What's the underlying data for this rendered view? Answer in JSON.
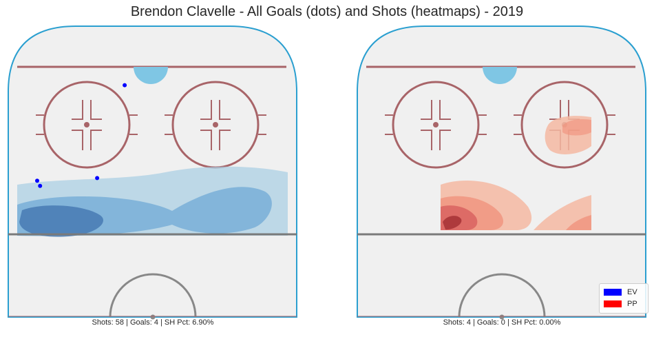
{
  "title": "Brendon Clavelle - All Goals (dots) and Shots (heatmaps) - 2019",
  "colors": {
    "ev": "#0000ff",
    "pp": "#ff0000",
    "boards": "#2a9fd0",
    "rink_red": "#a86468",
    "crease": "#7fc6e4",
    "ice": "#f0f0f0"
  },
  "legend": [
    {
      "label": "EV",
      "color": "#0000ff"
    },
    {
      "label": "PP",
      "color": "#ff0000"
    }
  ],
  "chart_data": [
    {
      "type": "scatter",
      "panel": "left",
      "caption": "Shots: 58 | Goals: 4 | SH Pct: 6.90%",
      "strength": "EV",
      "shots": 58,
      "goals_count": 4,
      "sh_pct": 6.9,
      "goals": [
        {
          "x": -19.5,
          "y": 82
        },
        {
          "x": -80,
          "y": 45.5
        },
        {
          "x": -78,
          "y": 43.5
        },
        {
          "x": -38.5,
          "y": 46.5
        }
      ],
      "heatmap": "kde-blue"
    },
    {
      "type": "heatmap",
      "panel": "right",
      "caption": "Shots: 4 | Goals: 0 | SH Pct: 0.00%",
      "strength": "PP",
      "shots": 4,
      "goals_count": 0,
      "sh_pct": 0.0,
      "goals": [],
      "heatmap": "kde-red"
    }
  ]
}
